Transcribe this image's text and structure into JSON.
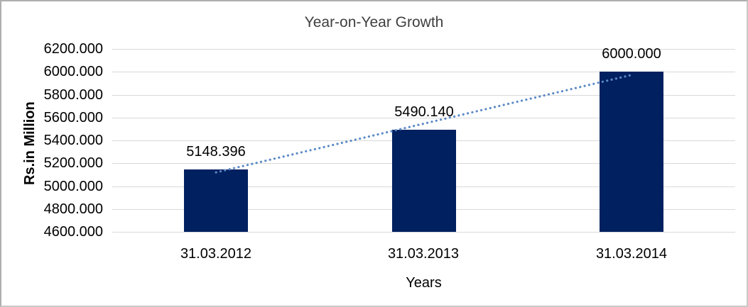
{
  "window": {
    "background": "#ffffff",
    "frame_border_color": "#c0c0c0"
  },
  "chart_data": {
    "type": "bar",
    "title": "Year-on-Year Growth",
    "categories": [
      "31.03.2012",
      "31.03.2013",
      "31.03.2014"
    ],
    "values": [
      5148.396,
      5490.14,
      6000.0
    ],
    "data_labels": [
      "5148.396",
      "5490.140",
      "6000.000"
    ],
    "xlabel": "Years",
    "ylabel": "Rs.in Million",
    "ylim": [
      4600,
      6200
    ],
    "ytick_step": 200,
    "yticks": [
      "6200.000",
      "6000.000",
      "5800.000",
      "5600.000",
      "5400.000",
      "5200.000",
      "5000.000",
      "4800.000",
      "4600.000"
    ],
    "grid": true,
    "legend": "none",
    "trendline": {
      "type": "linear",
      "style": "dotted"
    },
    "colors": {
      "bar": "#002060",
      "gridline": "#d9d9d9",
      "trendline": "#5b8ac6",
      "title": "#3f3f3f",
      "text": "#000000"
    }
  }
}
